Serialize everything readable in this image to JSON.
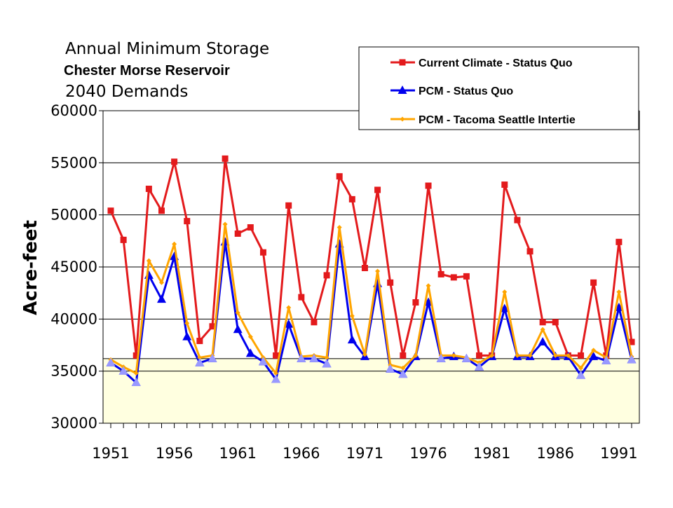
{
  "titles": {
    "line1": "Annual Minimum Storage",
    "line2": "Chester Morse Reservoir",
    "line3": "2040 Demands"
  },
  "chart_data": {
    "type": "line",
    "ylabel": "Acre-feet",
    "xlabel": "",
    "ylim": [
      30000,
      60000
    ],
    "yticks": [
      30000,
      35000,
      40000,
      45000,
      50000,
      55000,
      60000
    ],
    "xticks": [
      1951,
      1956,
      1961,
      1966,
      1971,
      1976,
      1981,
      1986,
      1991
    ],
    "x": [
      1951,
      1952,
      1953,
      1954,
      1955,
      1956,
      1957,
      1958,
      1959,
      1960,
      1961,
      1962,
      1963,
      1964,
      1965,
      1966,
      1967,
      1968,
      1969,
      1970,
      1971,
      1972,
      1973,
      1974,
      1975,
      1976,
      1977,
      1978,
      1979,
      1980,
      1981,
      1982,
      1983,
      1984,
      1985,
      1986,
      1987,
      1988,
      1989,
      1990,
      1991,
      1992
    ],
    "grid": "horizontal",
    "legend_position": "top-right",
    "shaded_band": {
      "from": 30000,
      "to": 36200,
      "color": "#ffffe0"
    },
    "series": [
      {
        "name": "Current Climate - Status Quo",
        "color": "#e31a1c",
        "marker": "square",
        "values": [
          50400,
          47600,
          36500,
          52500,
          50400,
          55100,
          49400,
          37900,
          39300,
          55400,
          48200,
          48800,
          46400,
          36500,
          50900,
          42100,
          39700,
          44200,
          53700,
          51500,
          44900,
          52400,
          43500,
          36500,
          41600,
          52800,
          44300,
          44000,
          44100,
          36500,
          36500,
          52900,
          49500,
          46500,
          39700,
          39700,
          36500,
          36500,
          43500,
          36500,
          47400,
          37800
        ]
      },
      {
        "name": "PCM - Status Quo",
        "color": "#0000ee",
        "marker": "triangle",
        "values": [
          35800,
          35000,
          33900,
          44200,
          41900,
          46000,
          38300,
          35800,
          36200,
          47400,
          39000,
          36700,
          35900,
          34200,
          39500,
          36200,
          36200,
          35700,
          47200,
          38000,
          36400,
          43400,
          35200,
          34700,
          36400,
          41600,
          36200,
          36400,
          36200,
          35400,
          36400,
          41000,
          36400,
          36400,
          37800,
          36400,
          36400,
          34600,
          36400,
          36000,
          41100,
          36100
        ]
      },
      {
        "name": "PCM - Tacoma Seattle Intertie",
        "color": "#ffa500",
        "marker": "diamond",
        "values": [
          36100,
          35400,
          34800,
          45600,
          43500,
          47200,
          39600,
          36300,
          36500,
          49100,
          40600,
          38300,
          36300,
          34800,
          41100,
          36400,
          36500,
          36300,
          48800,
          40300,
          36600,
          44600,
          35600,
          35300,
          36500,
          43200,
          36500,
          36500,
          36300,
          35800,
          36500,
          42600,
          36500,
          36500,
          39000,
          36500,
          36500,
          35300,
          37000,
          36300,
          42600,
          36400
        ]
      }
    ]
  }
}
